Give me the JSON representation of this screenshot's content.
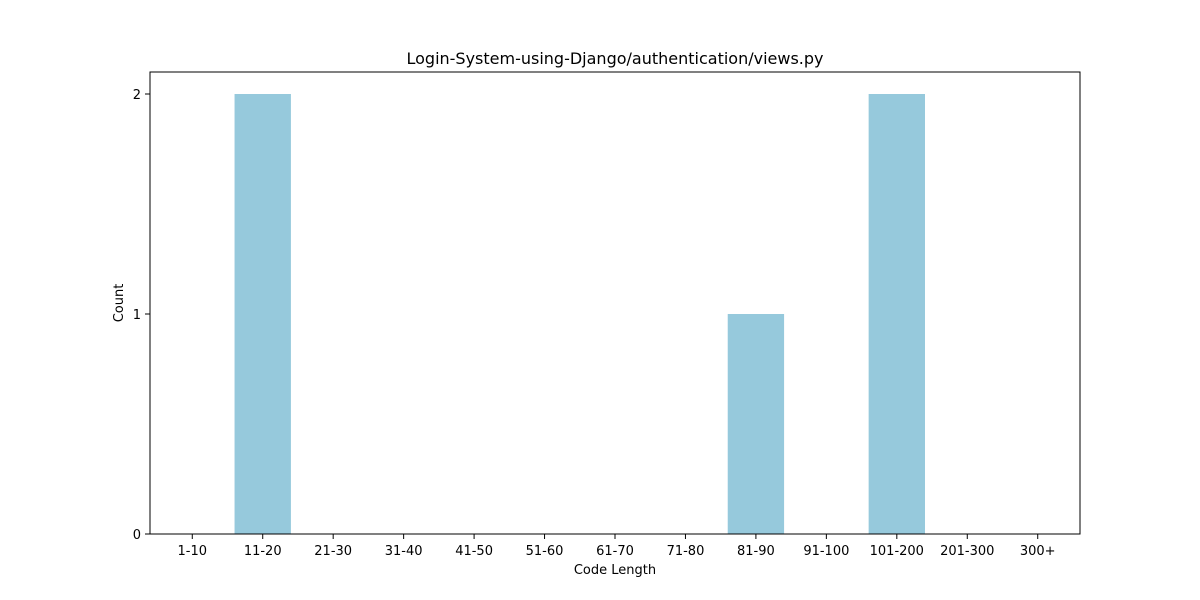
{
  "chart_data": {
    "type": "bar",
    "title": "Login-System-using-Django/authentication/views.py",
    "xlabel": "Code Length",
    "ylabel": "Count",
    "categories": [
      "1-10",
      "11-20",
      "21-30",
      "31-40",
      "41-50",
      "51-60",
      "61-70",
      "71-80",
      "81-90",
      "91-100",
      "101-200",
      "201-300",
      "300+"
    ],
    "values": [
      0,
      2,
      0,
      0,
      0,
      0,
      0,
      0,
      1,
      0,
      2,
      0,
      0
    ],
    "ylim": [
      0,
      2.1
    ],
    "yticks": [
      0,
      1,
      2
    ],
    "bar_color": "#96c9dc",
    "grid": false,
    "legend": "none"
  }
}
